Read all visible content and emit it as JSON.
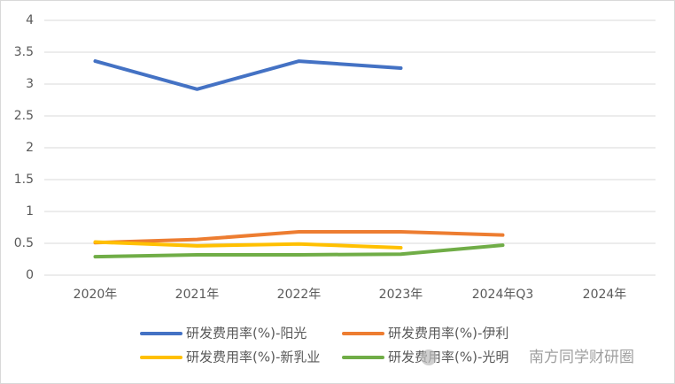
{
  "chart_data": {
    "type": "line",
    "categories": [
      "2020年",
      "2021年",
      "2022年",
      "2023年",
      "2024年Q3",
      "2024年"
    ],
    "series": [
      {
        "name": "研发费用率(%)-阳光",
        "color": "#4472c4",
        "values": [
          3.36,
          2.92,
          3.36,
          3.25,
          null,
          null
        ]
      },
      {
        "name": "研发费用率(%)-伊利",
        "color": "#ed7d31",
        "values": [
          0.51,
          0.56,
          0.68,
          0.68,
          0.63,
          null
        ]
      },
      {
        "name": "研发费用率(%)-新乳业",
        "color": "#ffc000",
        "values": [
          0.52,
          0.46,
          0.49,
          0.43,
          null,
          null
        ]
      },
      {
        "name": "研发费用率(%)-光明",
        "color": "#70ad47",
        "values": [
          0.29,
          0.32,
          0.32,
          0.33,
          0.47,
          null
        ]
      }
    ],
    "ylim": [
      0,
      4
    ],
    "yticks": [
      0,
      0.5,
      1,
      1.5,
      2,
      2.5,
      3,
      3.5,
      4
    ],
    "grid": true,
    "legend": "bottom",
    "watermark": "南方同学财研圈"
  }
}
